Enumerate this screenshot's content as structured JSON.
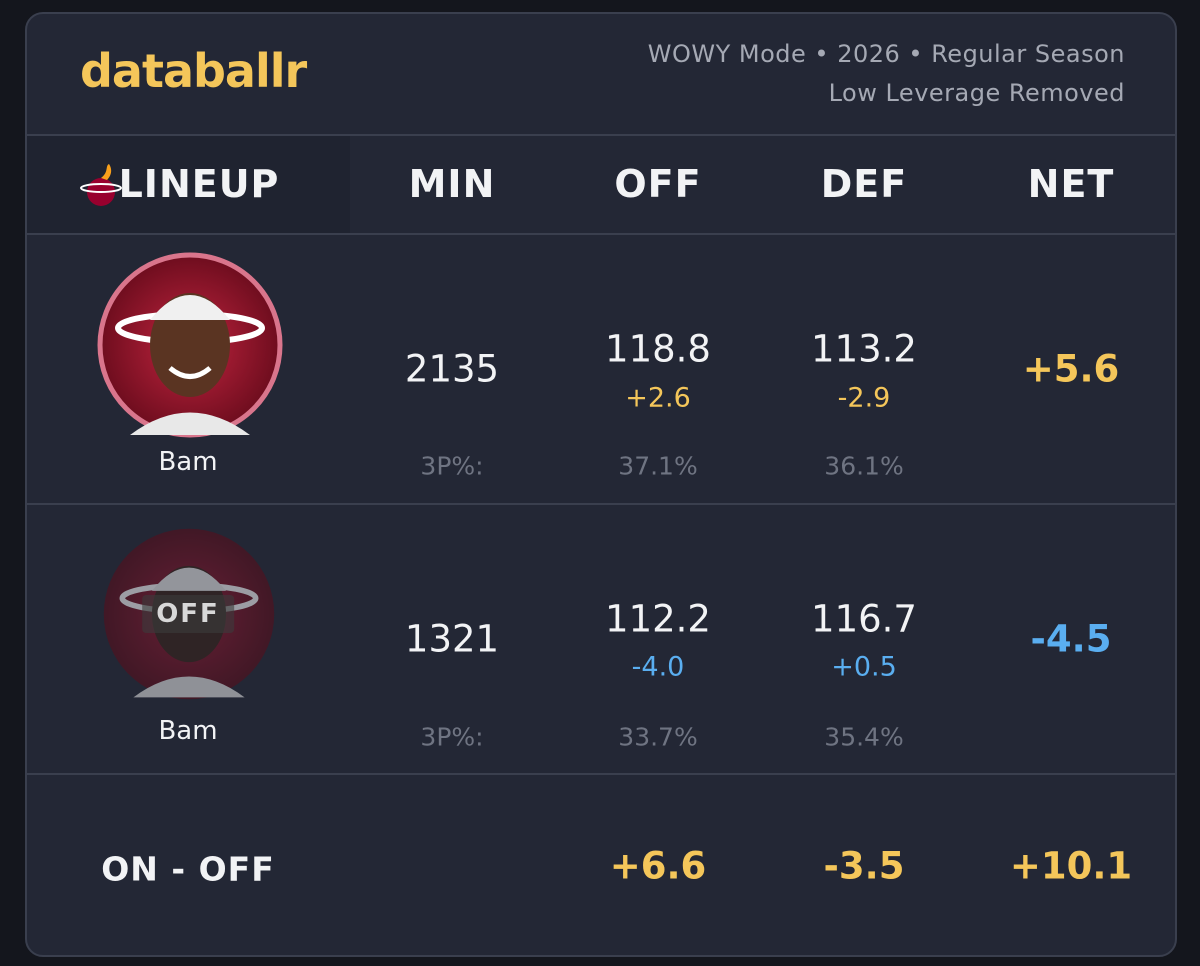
{
  "header": {
    "brand": "databallr",
    "subtitle": [
      "WOWY Mode • 2026 • Regular Season",
      "Low Leverage Removed"
    ]
  },
  "table": {
    "headers": [
      "LINEUP",
      "MIN",
      "OFF",
      "DEF",
      "NET"
    ],
    "rows": [
      {
        "player": "Bam",
        "min": "2135",
        "off": "118.8",
        "off_diff": "+2.6",
        "def": "113.2",
        "def_diff": "-2.9",
        "net": "+5.6",
        "label_3p": "3P%:",
        "off_3p": "37.1%",
        "def_3p": "36.1%"
      },
      {
        "player": "Bam",
        "badge": "OFF",
        "min": "1321",
        "off": "112.2",
        "off_diff": "-4.0",
        "def": "116.7",
        "def_diff": "+0.5",
        "net": "-4.5",
        "label_3p": "3P%:",
        "off_3p": "33.7%",
        "def_3p": "35.4%"
      }
    ],
    "summary": {
      "label": "ON - OFF",
      "off": "+6.6",
      "def": "-3.5",
      "net": "+10.1"
    }
  }
}
